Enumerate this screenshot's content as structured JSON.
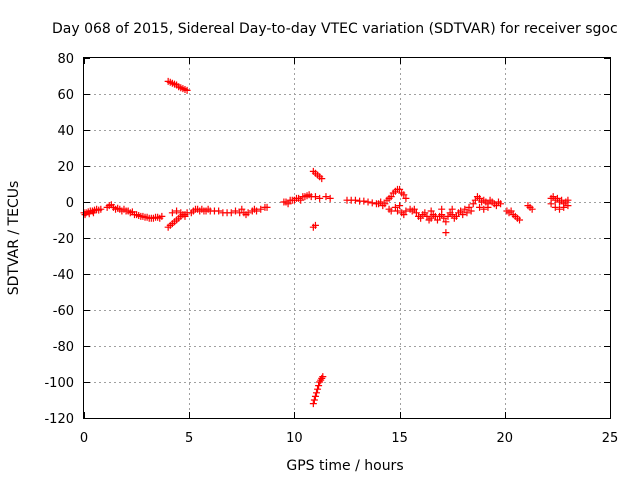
{
  "chart_data": {
    "type": "scatter",
    "title": "Day 068 of 2015, Sidereal Day-to-day VTEC variation (SDTVAR) for receiver sgoc",
    "xlabel": "GPS time / hours",
    "ylabel": "SDTVAR / TECUs",
    "xlim": [
      0,
      25
    ],
    "ylim": [
      -120,
      80
    ],
    "xticks": [
      0,
      5,
      10,
      15,
      20,
      25
    ],
    "yticks": [
      -120,
      -100,
      -80,
      -60,
      -40,
      -20,
      0,
      20,
      40,
      60,
      80
    ],
    "grid": true,
    "marker": "+",
    "color": "#ff0000",
    "series": [
      {
        "name": "SDTVAR",
        "points": [
          [
            0.0,
            -6
          ],
          [
            0.1,
            -6
          ],
          [
            0.2,
            -5.5
          ],
          [
            0.3,
            -5
          ],
          [
            0.4,
            -5
          ],
          [
            0.5,
            -4.5
          ],
          [
            0.6,
            -4
          ],
          [
            0.7,
            -4.5
          ],
          [
            0.8,
            -4
          ],
          [
            0.05,
            -7
          ],
          [
            0.25,
            -6.5
          ],
          [
            0.45,
            -6
          ],
          [
            1.1,
            -3
          ],
          [
            1.2,
            -2
          ],
          [
            1.3,
            -1.5
          ],
          [
            1.4,
            -3
          ],
          [
            1.5,
            -4
          ],
          [
            1.6,
            -3.5
          ],
          [
            1.7,
            -4
          ],
          [
            1.8,
            -5
          ],
          [
            1.9,
            -4
          ],
          [
            2.0,
            -5
          ],
          [
            2.1,
            -5
          ],
          [
            2.2,
            -6
          ],
          [
            2.3,
            -5.5
          ],
          [
            2.4,
            -7
          ],
          [
            2.5,
            -7
          ],
          [
            2.6,
            -7.5
          ],
          [
            2.7,
            -8
          ],
          [
            2.8,
            -8
          ],
          [
            2.9,
            -8.5
          ],
          [
            3.0,
            -8.5
          ],
          [
            3.1,
            -9
          ],
          [
            3.2,
            -9
          ],
          [
            3.3,
            -9
          ],
          [
            3.4,
            -8.5
          ],
          [
            3.5,
            -8.5
          ],
          [
            3.6,
            -9
          ],
          [
            3.7,
            -8
          ],
          [
            4.0,
            -14
          ],
          [
            4.1,
            -13
          ],
          [
            4.2,
            -12
          ],
          [
            4.3,
            -11
          ],
          [
            4.4,
            -10
          ],
          [
            4.5,
            -9
          ],
          [
            4.6,
            -8
          ],
          [
            4.7,
            -7
          ],
          [
            4.8,
            -7
          ],
          [
            4.9,
            -6
          ],
          [
            4.2,
            -6
          ],
          [
            4.4,
            -5
          ],
          [
            4.6,
            -6
          ],
          [
            4.8,
            -8
          ],
          [
            4.0,
            67
          ],
          [
            4.1,
            66.5
          ],
          [
            4.2,
            66
          ],
          [
            4.3,
            65.5
          ],
          [
            4.4,
            65
          ],
          [
            4.5,
            64
          ],
          [
            4.6,
            63.5
          ],
          [
            4.7,
            63
          ],
          [
            4.8,
            62.5
          ],
          [
            4.9,
            62
          ],
          [
            5.1,
            -6
          ],
          [
            5.2,
            -5
          ],
          [
            5.3,
            -4
          ],
          [
            5.4,
            -4
          ],
          [
            5.5,
            -5
          ],
          [
            5.6,
            -4
          ],
          [
            5.7,
            -5
          ],
          [
            5.8,
            -5
          ],
          [
            5.9,
            -4
          ],
          [
            6.0,
            -5
          ],
          [
            6.2,
            -5
          ],
          [
            6.4,
            -5
          ],
          [
            6.6,
            -6
          ],
          [
            6.8,
            -6
          ],
          [
            7.0,
            -6
          ],
          [
            7.2,
            -5
          ],
          [
            7.4,
            -6
          ],
          [
            7.6,
            -6
          ],
          [
            7.8,
            -6
          ],
          [
            8.0,
            -5
          ],
          [
            7.5,
            -4
          ],
          [
            7.7,
            -7
          ],
          [
            8.1,
            -4
          ],
          [
            8.2,
            -5
          ],
          [
            8.4,
            -4
          ],
          [
            8.6,
            -3
          ],
          [
            8.7,
            -3
          ],
          [
            9.5,
            0
          ],
          [
            9.6,
            0
          ],
          [
            9.7,
            -1
          ],
          [
            9.8,
            1
          ],
          [
            9.9,
            1
          ],
          [
            10.0,
            1
          ],
          [
            10.1,
            2
          ],
          [
            10.2,
            2
          ],
          [
            10.3,
            1
          ],
          [
            10.4,
            3
          ],
          [
            10.5,
            3
          ],
          [
            10.6,
            3.5
          ],
          [
            10.7,
            4
          ],
          [
            10.8,
            3
          ],
          [
            11.0,
            3
          ],
          [
            11.2,
            2
          ],
          [
            11.5,
            3
          ],
          [
            11.7,
            2
          ],
          [
            10.9,
            17
          ],
          [
            11.0,
            16
          ],
          [
            11.1,
            15
          ],
          [
            11.2,
            14
          ],
          [
            11.3,
            13
          ],
          [
            10.9,
            -14
          ],
          [
            11.0,
            -13
          ],
          [
            10.9,
            -112
          ],
          [
            10.95,
            -110
          ],
          [
            11.0,
            -108
          ],
          [
            11.05,
            -106
          ],
          [
            11.1,
            -104
          ],
          [
            11.15,
            -102
          ],
          [
            11.2,
            -100
          ],
          [
            11.25,
            -99
          ],
          [
            11.3,
            -98
          ],
          [
            11.35,
            -97
          ],
          [
            12.5,
            1
          ],
          [
            12.7,
            1
          ],
          [
            12.9,
            1
          ],
          [
            13.1,
            0.5
          ],
          [
            13.3,
            0.5
          ],
          [
            13.5,
            0
          ],
          [
            13.7,
            -0.5
          ],
          [
            13.9,
            -1
          ],
          [
            14.0,
            -1
          ],
          [
            14.1,
            0
          ],
          [
            14.2,
            -2
          ],
          [
            14.3,
            -1
          ],
          [
            14.4,
            1
          ],
          [
            14.5,
            2
          ],
          [
            14.6,
            3
          ],
          [
            14.7,
            5
          ],
          [
            14.8,
            6
          ],
          [
            14.9,
            7
          ],
          [
            15.0,
            7
          ],
          [
            15.1,
            5
          ],
          [
            15.2,
            4
          ],
          [
            15.3,
            2
          ],
          [
            14.5,
            -4
          ],
          [
            14.6,
            -5
          ],
          [
            14.8,
            -3
          ],
          [
            15.0,
            -2
          ],
          [
            14.9,
            -5
          ],
          [
            15.1,
            -6
          ],
          [
            15.2,
            -7
          ],
          [
            15.3,
            -5
          ],
          [
            15.5,
            -4
          ],
          [
            15.6,
            -5
          ],
          [
            15.7,
            -4
          ],
          [
            15.8,
            -6
          ],
          [
            15.9,
            -8
          ],
          [
            16.0,
            -9
          ],
          [
            16.1,
            -7
          ],
          [
            16.2,
            -6
          ],
          [
            16.3,
            -8
          ],
          [
            16.4,
            -10
          ],
          [
            16.5,
            -9
          ],
          [
            16.6,
            -7
          ],
          [
            16.7,
            -8
          ],
          [
            16.8,
            -10
          ],
          [
            16.9,
            -8
          ],
          [
            17.0,
            -7
          ],
          [
            17.1,
            -9
          ],
          [
            17.2,
            -11
          ],
          [
            17.3,
            -8
          ],
          [
            17.4,
            -6
          ],
          [
            17.5,
            -7
          ],
          [
            17.6,
            -9
          ],
          [
            17.7,
            -8
          ],
          [
            17.8,
            -6
          ],
          [
            17.9,
            -5
          ],
          [
            18.0,
            -7
          ],
          [
            16.5,
            -5
          ],
          [
            17.0,
            -4
          ],
          [
            17.2,
            -17
          ],
          [
            17.5,
            -4
          ],
          [
            18.1,
            -4
          ],
          [
            18.2,
            -6
          ],
          [
            18.3,
            -3
          ],
          [
            18.4,
            -5
          ],
          [
            18.5,
            -1
          ],
          [
            18.6,
            1
          ],
          [
            18.7,
            3
          ],
          [
            18.8,
            2
          ],
          [
            18.9,
            0
          ],
          [
            19.0,
            1
          ],
          [
            19.1,
            0
          ],
          [
            19.2,
            -1
          ],
          [
            19.3,
            1
          ],
          [
            19.4,
            0
          ],
          [
            19.5,
            -1
          ],
          [
            19.6,
            -2
          ],
          [
            19.7,
            0
          ],
          [
            19.8,
            -1
          ],
          [
            18.8,
            -3
          ],
          [
            19.0,
            -4
          ],
          [
            19.2,
            -3
          ],
          [
            20.1,
            -5
          ],
          [
            20.2,
            -6
          ],
          [
            20.3,
            -5
          ],
          [
            20.4,
            -7
          ],
          [
            20.5,
            -8
          ],
          [
            20.6,
            -9
          ],
          [
            20.7,
            -10
          ],
          [
            21.1,
            -2
          ],
          [
            21.2,
            -3
          ],
          [
            21.3,
            -4
          ],
          [
            22.2,
            2
          ],
          [
            22.3,
            3
          ],
          [
            22.4,
            1
          ],
          [
            22.5,
            2
          ],
          [
            22.6,
            0
          ],
          [
            22.7,
            1
          ],
          [
            22.8,
            -1
          ],
          [
            22.9,
            0
          ],
          [
            23.0,
            -2
          ],
          [
            22.2,
            -1
          ],
          [
            22.4,
            -3
          ],
          [
            22.6,
            -4
          ],
          [
            22.8,
            -3
          ],
          [
            23.0,
            1
          ]
        ]
      }
    ]
  }
}
